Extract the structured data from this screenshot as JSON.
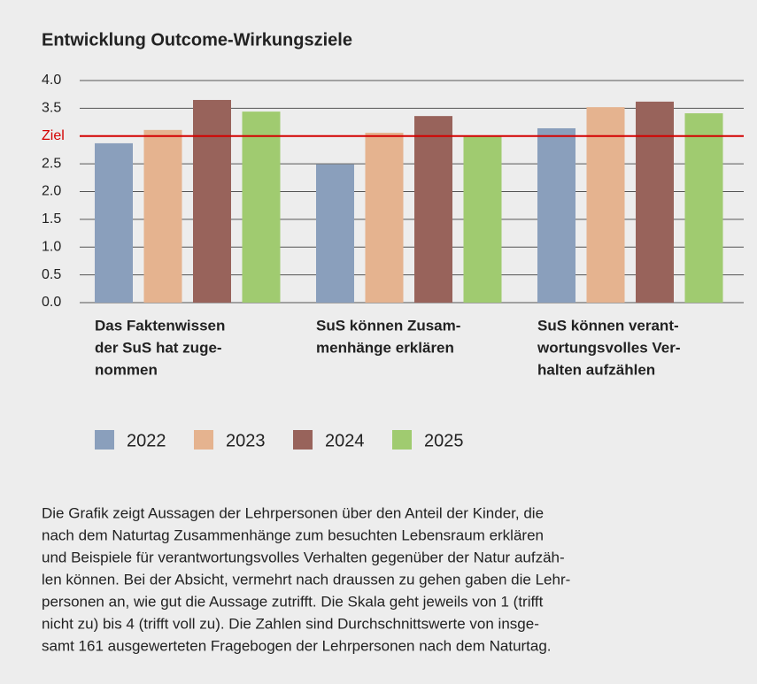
{
  "chart_data": {
    "type": "bar",
    "title": "Entwicklung Outcome-Wirkungsziele",
    "categories": [
      [
        "Das Faktenwissen",
        "der SuS hat zuge-",
        "nommen"
      ],
      [
        "SuS können Zusam-",
        "menhänge erklären"
      ],
      [
        "SuS können verant-",
        "wortungsvolles Ver-",
        "halten aufzählen"
      ]
    ],
    "series": [
      {
        "name": "2022",
        "color": "#8a9fbc",
        "values": [
          2.87,
          2.49,
          3.14
        ]
      },
      {
        "name": "2023",
        "color": "#e5b38f",
        "values": [
          3.11,
          3.06,
          3.52
        ]
      },
      {
        "name": "2024",
        "color": "#98635b",
        "values": [
          3.65,
          3.36,
          3.62
        ]
      },
      {
        "name": "2025",
        "color": "#a0cb70",
        "values": [
          3.44,
          3.01,
          3.41
        ]
      }
    ],
    "ylim": [
      0,
      4
    ],
    "yticks": [
      {
        "value": 0,
        "label": "0.0"
      },
      0.5,
      {
        "value": 1,
        "label": "1.0"
      },
      1.5,
      {
        "value": 2,
        "label": "2.0"
      },
      2.5,
      {
        "value": 3,
        "label": "Ziel"
      },
      3.5,
      {
        "value": 4,
        "label": "4.0"
      }
    ],
    "grid": true,
    "reference_line": {
      "value": 3,
      "color": "#d40000"
    },
    "legend": "bottom",
    "caption": [
      "Die Grafik zeigt Aussagen der Lehrpersonen über den Anteil der Kinder, die",
      "nach dem Naturtag Zusammenhänge zum besuchten Lebensraum erklären",
      "und Beispiele für verantwortungsvolles Verhalten gegenüber der Natur aufzäh-",
      "len können. Bei der Absicht, vermehrt nach draussen zu gehen gaben die Lehr-",
      "personen an, wie gut die Aussage zutrifft. Die Skala geht jeweils von 1 (trifft",
      "nicht zu) bis 4 (trifft voll zu). Die Zahlen sind Durchschnittswerte von insge-",
      "samt 161 ausgewerteten Fragebogen der Lehrpersonen nach dem Naturtag."
    ]
  }
}
